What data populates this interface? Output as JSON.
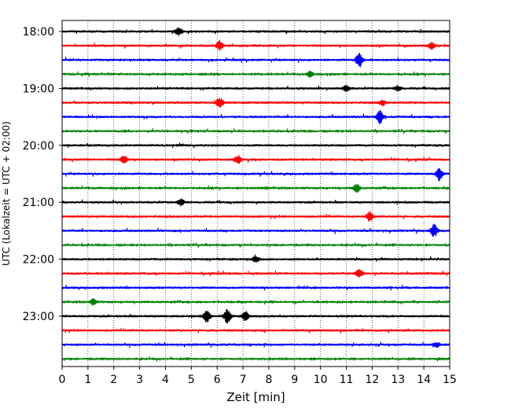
{
  "chart_data": {
    "type": "line",
    "title": "",
    "xlabel": "Zeit  [min]",
    "ylabel": "UTC (Lokalzeit = UTC + 02:00)",
    "xlim": [
      0,
      15
    ],
    "x_ticks": [
      "0",
      "1",
      "2",
      "3",
      "4",
      "5",
      "6",
      "7",
      "8",
      "9",
      "10",
      "11",
      "12",
      "13",
      "14",
      "15"
    ],
    "y_tick_labels": [
      "18:00",
      "19:00",
      "20:00",
      "21:00",
      "22:00",
      "23:00"
    ],
    "grid": "vertical dotted",
    "trace_colors": [
      "#000000",
      "#ff0000",
      "#0000ff",
      "#008000"
    ],
    "traces": [
      {
        "start": "18:00",
        "events": [
          {
            "t": 4.5,
            "amp": 5
          }
        ]
      },
      {
        "start": "18:15",
        "events": [
          {
            "t": 6.1,
            "amp": 6
          },
          {
            "t": 14.3,
            "amp": 4
          }
        ]
      },
      {
        "start": "18:30",
        "events": [
          {
            "t": 11.5,
            "amp": 9
          }
        ]
      },
      {
        "start": "18:45",
        "events": [
          {
            "t": 9.6,
            "amp": 4
          }
        ]
      },
      {
        "start": "19:00",
        "events": [
          {
            "t": 11.0,
            "amp": 4
          },
          {
            "t": 13.0,
            "amp": 3
          }
        ]
      },
      {
        "start": "19:15",
        "events": [
          {
            "t": 6.1,
            "amp": 6
          },
          {
            "t": 12.4,
            "amp": 3
          }
        ]
      },
      {
        "start": "19:30",
        "events": [
          {
            "t": 12.3,
            "amp": 8
          }
        ]
      },
      {
        "start": "19:45",
        "events": []
      },
      {
        "start": "20:00",
        "events": []
      },
      {
        "start": "20:15",
        "events": [
          {
            "t": 2.4,
            "amp": 5
          },
          {
            "t": 6.8,
            "amp": 5
          }
        ]
      },
      {
        "start": "20:30",
        "events": [
          {
            "t": 14.6,
            "amp": 8
          }
        ]
      },
      {
        "start": "20:45",
        "events": [
          {
            "t": 11.4,
            "amp": 6
          }
        ]
      },
      {
        "start": "21:00",
        "events": [
          {
            "t": 4.6,
            "amp": 4
          }
        ]
      },
      {
        "start": "21:15",
        "events": [
          {
            "t": 11.9,
            "amp": 6
          }
        ]
      },
      {
        "start": "21:30",
        "events": [
          {
            "t": 14.4,
            "amp": 8
          }
        ]
      },
      {
        "start": "21:45",
        "events": []
      },
      {
        "start": "22:00",
        "events": [
          {
            "t": 7.5,
            "amp": 4
          }
        ]
      },
      {
        "start": "22:15",
        "events": [
          {
            "t": 11.5,
            "amp": 6
          }
        ]
      },
      {
        "start": "22:30",
        "events": []
      },
      {
        "start": "22:45",
        "events": [
          {
            "t": 1.2,
            "amp": 4
          }
        ]
      },
      {
        "start": "23:00",
        "events": [
          {
            "t": 5.6,
            "amp": 8
          },
          {
            "t": 6.4,
            "amp": 9
          },
          {
            "t": 7.1,
            "amp": 6
          }
        ]
      },
      {
        "start": "23:15",
        "events": []
      },
      {
        "start": "23:30",
        "events": [
          {
            "t": 14.5,
            "amp": 3
          }
        ]
      },
      {
        "start": "23:45",
        "events": []
      }
    ]
  }
}
